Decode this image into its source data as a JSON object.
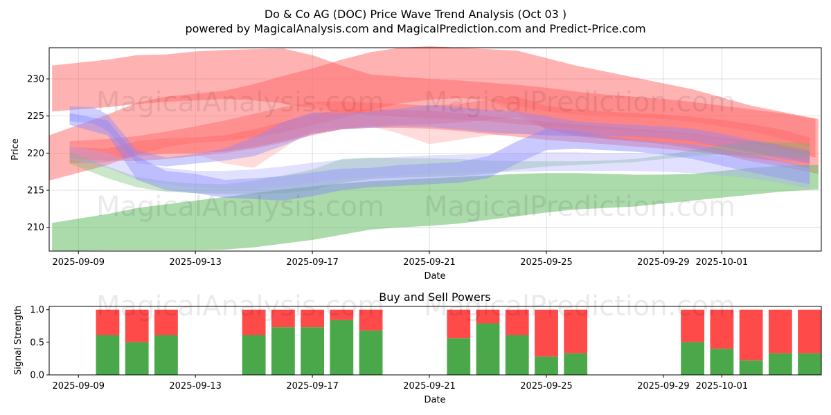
{
  "title": "Do & Co AG (DOC) Price Wave Trend Analysis (Oct 03 )",
  "subtitle": "powered by MagicalAnalysis.com and MagicalPrediction.com and Predict-Price.com",
  "watermarks": [
    "MagicalAnalysis.com",
    "MagicalPrediction.com"
  ],
  "chart_data": [
    {
      "type": "area",
      "title": "",
      "xlabel": "Date",
      "ylabel": "Price",
      "x_range_days": [
        -1.0,
        25.4
      ],
      "ylim": [
        206.8,
        234.2
      ],
      "yticks": [
        210,
        215,
        220,
        225,
        230
      ],
      "xticks": [
        {
          "day": 0,
          "label": "2025-09-09"
        },
        {
          "day": 4,
          "label": "2025-09-13"
        },
        {
          "day": 8,
          "label": "2025-09-17"
        },
        {
          "day": 12,
          "label": "2025-09-21"
        },
        {
          "day": 16,
          "label": "2025-09-25"
        },
        {
          "day": 20,
          "label": "2025-09-29"
        },
        {
          "day": 22,
          "label": "2025-10-01"
        }
      ],
      "grid": true,
      "series": [
        {
          "name": "red-wide-upper",
          "color": "#ff6666",
          "opacity": 0.5,
          "x": [
            -0.9,
            1,
            2,
            3,
            4,
            5,
            6,
            7,
            8,
            9,
            10,
            11,
            12,
            13,
            14,
            15,
            16,
            17,
            18,
            19,
            20,
            21,
            22,
            23,
            24,
            25.2
          ],
          "upper": [
            231.8,
            232.6,
            233.2,
            233.3,
            233.7,
            233.9,
            234.0,
            234.1,
            233.2,
            231.8,
            230.6,
            230.3,
            230.0,
            229.8,
            229.5,
            229.2,
            228.8,
            228.3,
            227.9,
            227.6,
            227.3,
            226.9,
            226.4,
            225.9,
            225.4,
            224.6
          ],
          "lower": [
            225.6,
            226.2,
            226.6,
            226.9,
            227.1,
            227.3,
            227.1,
            226.7,
            226.0,
            225.5,
            225.1,
            224.9,
            224.7,
            224.5,
            224.3,
            223.9,
            223.6,
            223.4,
            223.2,
            223.0,
            222.8,
            222.5,
            221.9,
            221.2,
            220.5,
            219.4
          ]
        },
        {
          "name": "red-rising",
          "color": "#ff6666",
          "opacity": 0.5,
          "x": [
            -1.0,
            1,
            2,
            3,
            4,
            5,
            6,
            7,
            8,
            9,
            10,
            11,
            12,
            13,
            14,
            15,
            16,
            17,
            18,
            19,
            20,
            21,
            22,
            23,
            24,
            25.3
          ],
          "upper": [
            222.4,
            225.2,
            226.8,
            227.6,
            228.0,
            228.4,
            229.3,
            230.4,
            231.4,
            232.6,
            233.6,
            234.2,
            234.4,
            234.2,
            234.0,
            233.8,
            232.8,
            231.8,
            231.0,
            230.2,
            229.4,
            228.6,
            227.5,
            226.4,
            225.6,
            224.6
          ],
          "lower": [
            216.3,
            218.4,
            219.8,
            220.8,
            221.4,
            221.6,
            222.1,
            222.8,
            223.8,
            224.7,
            225.8,
            226.7,
            227.2,
            227.4,
            227.2,
            225.4,
            223.2,
            222.3,
            221.9,
            221.6,
            221.2,
            220.6,
            219.8,
            218.9,
            218.2,
            217.2
          ]
        },
        {
          "name": "red-mid",
          "color": "#ff6666",
          "opacity": 0.45,
          "x": [
            -0.3,
            1,
            2,
            3,
            4,
            5,
            6,
            7,
            8,
            9,
            10,
            11,
            12,
            13,
            14,
            15,
            16,
            17,
            18,
            19,
            20,
            21,
            22,
            23,
            24,
            25.0
          ],
          "upper": [
            221.6,
            221.9,
            222.3,
            222.9,
            223.6,
            224.4,
            225.3,
            226.2,
            226.9,
            227.0,
            226.8,
            226.6,
            226.4,
            226.6,
            227.2,
            227.6,
            226.4,
            225.9,
            225.6,
            225.4,
            225.2,
            224.9,
            224.5,
            223.9,
            223.2,
            222.1
          ],
          "lower": [
            219.2,
            219.0,
            218.9,
            219.2,
            219.6,
            220.0,
            220.6,
            221.4,
            222.4,
            223.2,
            223.6,
            223.8,
            223.9,
            224.1,
            224.5,
            224.8,
            223.4,
            222.5,
            222.0,
            221.7,
            221.5,
            221.2,
            220.8,
            220.2,
            219.5,
            218.6
          ]
        },
        {
          "name": "pink-light",
          "color": "#ff9999",
          "opacity": 0.35,
          "x": [
            -0.3,
            1,
            2,
            3,
            4,
            5,
            6,
            7,
            8,
            9,
            10,
            11,
            12,
            13,
            14,
            15,
            16,
            17,
            18,
            19,
            20,
            21,
            22,
            23,
            24,
            25.0
          ],
          "upper": [
            221.3,
            221.0,
            221.4,
            222.0,
            222.3,
            222.1,
            222.0,
            224.4,
            226.8,
            225.8,
            225.2,
            224.6,
            224.9,
            226.4,
            227.0,
            226.4,
            225.6,
            225.2,
            225.0,
            224.8,
            224.6,
            224.2,
            223.6,
            222.9,
            222.0,
            220.8
          ],
          "lower": [
            219.6,
            219.4,
            219.8,
            220.0,
            219.8,
            218.6,
            218.0,
            220.6,
            223.2,
            223.4,
            223.6,
            222.6,
            221.2,
            221.8,
            222.4,
            222.6,
            222.4,
            222.3,
            222.1,
            221.8,
            221.4,
            220.9,
            220.3,
            219.6,
            218.8,
            217.8
          ]
        },
        {
          "name": "red-lower-trend",
          "color": "#ff6666",
          "opacity": 0.45,
          "x": [
            -0.3,
            1,
            2,
            3,
            4,
            5,
            6,
            7,
            8,
            9,
            10,
            11,
            12,
            13,
            14,
            15,
            16,
            17,
            18,
            19,
            20,
            21,
            22,
            23,
            24,
            25.0
          ],
          "upper": [
            220.8,
            220.6,
            221.6,
            222.0,
            222.1,
            222.4,
            223.2,
            224.2,
            225.3,
            225.8,
            225.9,
            225.8,
            225.7,
            225.4,
            225.0,
            224.6,
            224.2,
            223.9,
            223.6,
            223.3,
            223.0,
            222.6,
            222.1,
            221.6,
            221.2,
            220.4
          ],
          "lower": [
            218.6,
            218.8,
            219.6,
            219.9,
            220.0,
            220.2,
            220.8,
            221.6,
            222.6,
            223.2,
            223.4,
            223.4,
            223.3,
            223.0,
            222.6,
            222.2,
            221.8,
            221.5,
            221.2,
            220.9,
            220.6,
            220.2,
            219.8,
            219.3,
            218.9,
            218.2
          ]
        },
        {
          "name": "green-low",
          "color": "#66bb66",
          "opacity": 0.55,
          "x": [
            -0.9,
            1,
            2,
            3,
            4,
            5,
            6,
            7,
            8,
            9,
            10,
            11,
            12,
            13,
            14,
            15,
            16,
            17,
            18,
            19,
            20,
            21,
            22,
            23,
            24,
            25.3
          ],
          "upper": [
            210.6,
            211.8,
            212.6,
            213.1,
            213.6,
            214.1,
            214.6,
            215.1,
            215.5,
            215.9,
            216.2,
            216.4,
            216.6,
            216.8,
            217.0,
            217.2,
            217.3,
            217.3,
            217.2,
            217.1,
            217.1,
            217.2,
            217.6,
            218.0,
            218.3,
            218.4
          ],
          "lower": [
            206.8,
            206.9,
            206.9,
            206.9,
            206.9,
            207.0,
            207.3,
            207.8,
            208.3,
            209.0,
            209.7,
            210.0,
            210.2,
            210.5,
            211.0,
            211.5,
            212.0,
            212.4,
            212.6,
            212.8,
            213.2,
            213.6,
            214.0,
            214.4,
            214.8,
            215.1
          ]
        },
        {
          "name": "green-mid",
          "color": "#66bb66",
          "opacity": 0.35,
          "x": [
            -0.3,
            1,
            2,
            3,
            4,
            5,
            6,
            7,
            8,
            9,
            10,
            11,
            12,
            13,
            14,
            15,
            16,
            17,
            18,
            19,
            20,
            21,
            22,
            23,
            24,
            25.0
          ],
          "upper": [
            220.2,
            218.2,
            216.8,
            216.2,
            215.9,
            215.8,
            216.3,
            217.0,
            217.8,
            219.2,
            219.4,
            219.3,
            219.3,
            219.2,
            219.0,
            218.9,
            218.9,
            218.9,
            219.0,
            219.2,
            219.7,
            220.4,
            221.1,
            221.6,
            221.5,
            221.3
          ],
          "lower": [
            218.6,
            216.6,
            215.4,
            214.8,
            214.6,
            214.5,
            214.5,
            214.6,
            215.0,
            216.0,
            216.5,
            216.7,
            216.8,
            216.9,
            217.2,
            217.8,
            218.2,
            218.4,
            218.6,
            218.8,
            219.2,
            219.6,
            219.8,
            219.7,
            219.5,
            219.2
          ]
        },
        {
          "name": "blue-upper",
          "color": "#8888ff",
          "opacity": 0.4,
          "x": [
            -0.3,
            0.5,
            1,
            2,
            3,
            4,
            5,
            6,
            7,
            8,
            9,
            10,
            11,
            12,
            13,
            14,
            15,
            16,
            17,
            18,
            19,
            20,
            21,
            22,
            23,
            24,
            25.0
          ],
          "upper": [
            226.3,
            226.2,
            225.2,
            220.4,
            219.4,
            219.9,
            220.6,
            222.2,
            224.2,
            225.5,
            225.4,
            225.6,
            226.0,
            226.5,
            226.2,
            225.8,
            225.6,
            225.0,
            224.3,
            224.0,
            223.8,
            223.6,
            223.3,
            222.6,
            221.8,
            221.0,
            220.2
          ],
          "lower": [
            224.3,
            224.0,
            223.0,
            218.6,
            218.2,
            218.6,
            219.0,
            219.6,
            221.0,
            222.6,
            223.2,
            223.4,
            223.6,
            223.5,
            223.2,
            222.8,
            222.6,
            222.4,
            222.3,
            222.3,
            222.2,
            222.0,
            221.6,
            220.8,
            220.0,
            219.2,
            218.6
          ]
        },
        {
          "name": "blue-lower",
          "color": "#8888ff",
          "opacity": 0.45,
          "x": [
            -0.3,
            1,
            2,
            3,
            4,
            5,
            6,
            7,
            8,
            9,
            10,
            11,
            12,
            13,
            14,
            15,
            16,
            17,
            18,
            19,
            20,
            21,
            22,
            23,
            24,
            25.0
          ],
          "upper": [
            225.4,
            224.4,
            219.6,
            217.6,
            217.2,
            216.4,
            216.6,
            216.9,
            217.4,
            217.9,
            218.0,
            218.4,
            218.6,
            218.8,
            219.6,
            221.6,
            223.3,
            223.0,
            222.3,
            221.8,
            221.5,
            221.2,
            220.6,
            219.9,
            219.0,
            218.2
          ],
          "lower": [
            223.8,
            222.4,
            216.4,
            215.0,
            214.6,
            214.0,
            213.8,
            213.6,
            214.2,
            215.0,
            215.4,
            215.6,
            215.8,
            216.0,
            216.6,
            218.6,
            220.4,
            220.6,
            220.4,
            220.2,
            219.8,
            219.2,
            218.3,
            217.4,
            216.6,
            215.8
          ]
        },
        {
          "name": "blue-light",
          "color": "#aaaaff",
          "opacity": 0.35,
          "x": [
            -0.3,
            1,
            2,
            3,
            4,
            5,
            6,
            7,
            8,
            9,
            10,
            11,
            12,
            13,
            14,
            15,
            16,
            17,
            18,
            19,
            20,
            21,
            22,
            23,
            24,
            25.0
          ],
          "upper": [
            221.0,
            220.0,
            218.6,
            218.0,
            217.6,
            217.6,
            217.8,
            218.2,
            218.7,
            219.1,
            219.3,
            219.5,
            219.7,
            219.8,
            219.9,
            220.0,
            220.1,
            220.1,
            220.0,
            220.0,
            219.9,
            219.8,
            219.6,
            219.2,
            218.6,
            218.0
          ],
          "lower": [
            219.2,
            218.0,
            216.4,
            215.8,
            215.4,
            215.2,
            215.2,
            215.5,
            216.0,
            216.5,
            216.8,
            217.0,
            217.2,
            217.3,
            217.4,
            217.5,
            217.6,
            217.6,
            217.6,
            217.6,
            217.5,
            217.3,
            217.0,
            216.6,
            216.0,
            215.2
          ]
        }
      ]
    },
    {
      "type": "bar",
      "title": "Buy and Sell Powers",
      "xlabel": "Date",
      "ylabel": "Signal Strength",
      "x_range_days": [
        -1.0,
        25.4
      ],
      "ylim": [
        0,
        1.05
      ],
      "yticks": [
        0.0,
        0.5,
        1.0
      ],
      "xticks": [
        {
          "day": 0,
          "label": "2025-09-09"
        },
        {
          "day": 4,
          "label": "2025-09-13"
        },
        {
          "day": 8,
          "label": "2025-09-17"
        },
        {
          "day": 12,
          "label": "2025-09-21"
        },
        {
          "day": 16,
          "label": "2025-09-25"
        },
        {
          "day": 20,
          "label": "2025-09-29"
        },
        {
          "day": 22,
          "label": "2025-10-01"
        }
      ],
      "buy_color": "#4aa84a",
      "sell_color": "#ff4a4a",
      "bars": [
        {
          "day": 1,
          "buy": 0.61
        },
        {
          "day": 2,
          "buy": 0.5
        },
        {
          "day": 3,
          "buy": 0.61
        },
        {
          "day": 6,
          "buy": 0.61
        },
        {
          "day": 7,
          "buy": 0.73
        },
        {
          "day": 8,
          "buy": 0.73
        },
        {
          "day": 9,
          "buy": 0.84
        },
        {
          "day": 10,
          "buy": 0.68
        },
        {
          "day": 13,
          "buy": 0.56
        },
        {
          "day": 14,
          "buy": 0.79
        },
        {
          "day": 15,
          "buy": 0.61
        },
        {
          "day": 16,
          "buy": 0.28
        },
        {
          "day": 17,
          "buy": 0.33
        },
        {
          "day": 21,
          "buy": 0.5
        },
        {
          "day": 22,
          "buy": 0.4
        },
        {
          "day": 23,
          "buy": 0.22
        },
        {
          "day": 24,
          "buy": 0.33
        },
        {
          "day": 25,
          "buy": 0.33
        }
      ]
    }
  ]
}
